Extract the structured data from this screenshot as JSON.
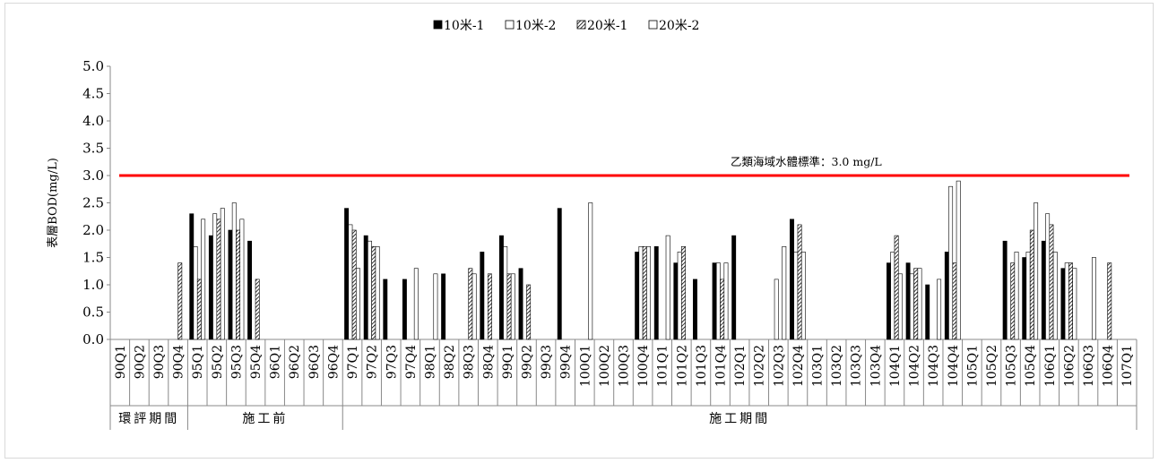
{
  "chart_data": {
    "type": "bar",
    "ylabel": "表層BOD(mg/L)",
    "ylim": [
      0,
      5
    ],
    "yticks": [
      "0.0",
      "0.5",
      "1.0",
      "1.5",
      "2.0",
      "2.5",
      "3.0",
      "3.5",
      "4.0",
      "4.5",
      "5.0"
    ],
    "legend_position": "top",
    "categories": [
      "90Q1",
      "90Q2",
      "90Q3",
      "90Q4",
      "95Q1",
      "95Q2",
      "95Q3",
      "95Q4",
      "96Q1",
      "96Q2",
      "96Q3",
      "96Q4",
      "97Q1",
      "97Q2",
      "97Q3",
      "97Q4",
      "98Q1",
      "98Q2",
      "98Q3",
      "98Q4",
      "99Q1",
      "99Q2",
      "99Q3",
      "99Q4",
      "100Q1",
      "100Q2",
      "100Q3",
      "100Q4",
      "101Q1",
      "101Q2",
      "101Q3",
      "101Q4",
      "102Q1",
      "102Q2",
      "102Q3",
      "102Q4",
      "103Q1",
      "103Q2",
      "103Q3",
      "103Q4",
      "104Q1",
      "104Q2",
      "104Q3",
      "104Q4",
      "105Q1",
      "105Q2",
      "105Q3",
      "105Q4",
      "106Q1",
      "106Q2",
      "106Q3",
      "106Q4",
      "107Q1"
    ],
    "series": [
      {
        "name": "10米-1",
        "pattern": "solid",
        "values": [
          null,
          null,
          null,
          null,
          2.3,
          1.9,
          2.0,
          1.8,
          null,
          null,
          null,
          null,
          2.4,
          1.9,
          1.1,
          1.1,
          null,
          1.2,
          null,
          1.6,
          1.9,
          1.3,
          null,
          2.4,
          null,
          null,
          null,
          1.6,
          1.7,
          1.4,
          1.1,
          1.4,
          1.9,
          null,
          null,
          2.2,
          null,
          null,
          null,
          null,
          1.4,
          1.4,
          1.0,
          1.6,
          null,
          null,
          1.8,
          1.5,
          1.8,
          1.3,
          null,
          null,
          null
        ]
      },
      {
        "name": "10米-2",
        "pattern": "open",
        "values": [
          null,
          null,
          null,
          null,
          1.7,
          2.3,
          2.5,
          null,
          null,
          null,
          null,
          null,
          2.1,
          1.8,
          null,
          null,
          null,
          null,
          null,
          null,
          1.7,
          null,
          null,
          null,
          null,
          null,
          null,
          1.7,
          null,
          1.6,
          null,
          1.4,
          null,
          null,
          1.1,
          1.6,
          null,
          null,
          null,
          null,
          1.6,
          1.2,
          null,
          2.8,
          null,
          null,
          null,
          1.6,
          2.3,
          1.4,
          null,
          null,
          null
        ]
      },
      {
        "name": "20米-1",
        "pattern": "hatch",
        "values": [
          null,
          null,
          null,
          1.4,
          1.1,
          2.2,
          2.0,
          1.1,
          null,
          null,
          null,
          null,
          2.0,
          1.7,
          null,
          null,
          null,
          null,
          1.3,
          1.2,
          1.2,
          1.0,
          null,
          null,
          null,
          null,
          null,
          1.7,
          null,
          1.7,
          null,
          1.1,
          null,
          null,
          null,
          2.1,
          null,
          null,
          null,
          null,
          1.9,
          1.3,
          null,
          1.4,
          null,
          null,
          1.4,
          2.0,
          2.1,
          1.4,
          null,
          1.4,
          null
        ]
      },
      {
        "name": "20米-2",
        "pattern": "open",
        "values": [
          null,
          null,
          null,
          null,
          2.2,
          2.4,
          2.2,
          null,
          null,
          null,
          null,
          null,
          1.3,
          1.7,
          null,
          1.3,
          1.2,
          null,
          1.2,
          null,
          1.2,
          null,
          null,
          null,
          2.5,
          null,
          null,
          1.7,
          1.9,
          null,
          null,
          1.4,
          null,
          null,
          1.7,
          1.6,
          null,
          null,
          null,
          null,
          1.2,
          1.3,
          1.1,
          2.9,
          null,
          null,
          1.6,
          2.5,
          1.6,
          1.3,
          1.5,
          null,
          null
        ]
      }
    ],
    "reference_line": {
      "value": 3.0,
      "label": "乙類海域水體標準：3.0 mg/L",
      "color": "#ff0000"
    },
    "period_groups": [
      {
        "label": "環評期間",
        "start": 0,
        "end": 3
      },
      {
        "label": "施工前",
        "start": 4,
        "end": 11
      },
      {
        "label": "施工期間",
        "start": 12,
        "end": 52
      }
    ]
  }
}
